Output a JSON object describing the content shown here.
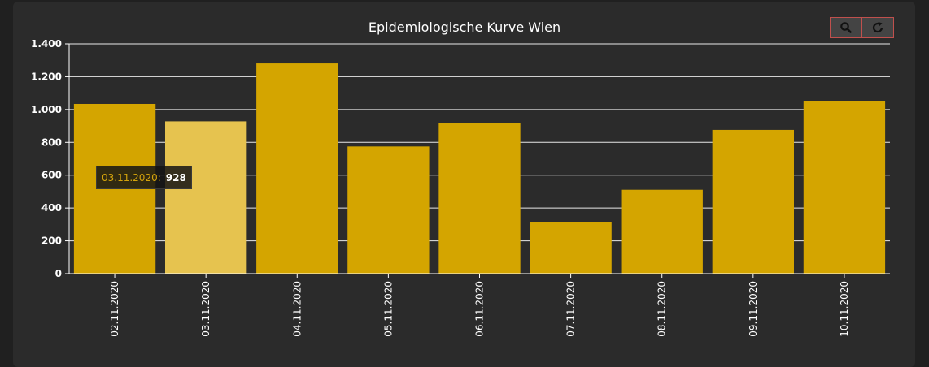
{
  "chart_data": {
    "type": "bar",
    "title": "Epidemiologische Kurve Wien",
    "categories": [
      "02.11.2020",
      "03.11.2020",
      "04.11.2020",
      "05.11.2020",
      "06.11.2020",
      "07.11.2020",
      "08.11.2020",
      "09.11.2020",
      "10.11.2020"
    ],
    "values": [
      1034,
      928,
      1281,
      775,
      917,
      313,
      511,
      876,
      1050
    ],
    "ylim": [
      0,
      1400
    ],
    "yticks": [
      0,
      200,
      400,
      600,
      800,
      1000,
      1200,
      1400
    ],
    "ytick_labels": [
      "0",
      "200",
      "400",
      "600",
      "800",
      "1.000",
      "1.200",
      "1.400"
    ],
    "grid": true,
    "bar_color": "#d4a500",
    "highlight_color": "#e6c34f",
    "highlight_index": 1
  },
  "tooltip": {
    "label": "03.11.2020:",
    "value": "928"
  },
  "toolbar": {
    "zoom_icon": "search-icon",
    "reset_icon": "refresh-icon"
  }
}
